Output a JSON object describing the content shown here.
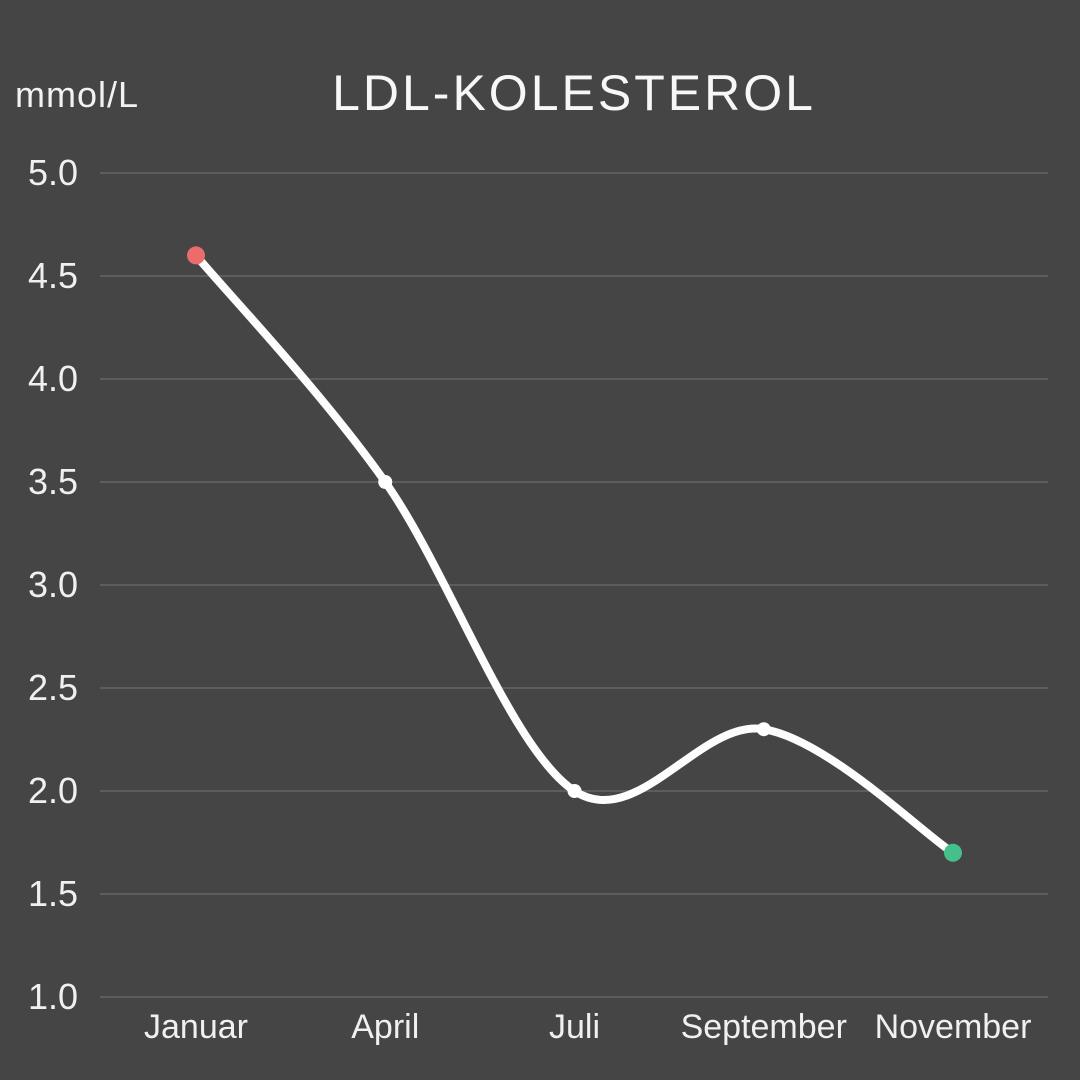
{
  "chart_data": {
    "type": "line",
    "title": "LDL-KOLESTEROL",
    "ylabel": "mmol/L",
    "xlabel": "",
    "categories": [
      "Januar",
      "April",
      "Juli",
      "September",
      "November"
    ],
    "values": [
      4.6,
      3.5,
      2.0,
      2.3,
      1.7
    ],
    "ylim": [
      1.0,
      5.0
    ],
    "ytick_step": 0.5,
    "ytick_decimals": 1,
    "grid": true,
    "legend": "none",
    "line_color": "#fdfdfd",
    "point_colors": [
      "#ec6c6c",
      "#ffffff",
      "#ffffff",
      "#ffffff",
      "#46c08a"
    ],
    "grid_color": "#5d5d5d",
    "background_color": "#454545",
    "text_color": "#f2f2f2"
  }
}
